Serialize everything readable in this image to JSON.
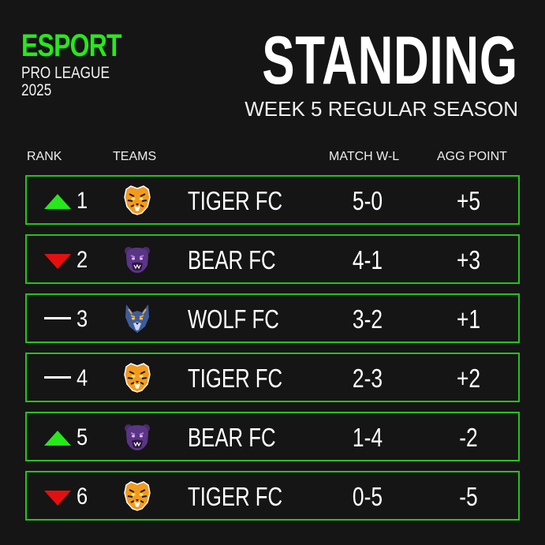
{
  "brand": {
    "name": "ESPORT",
    "line1": "PRO LEAGUE",
    "line2": "2025"
  },
  "header": {
    "title": "STANDING",
    "subtitle": "WEEK 5 REGULAR SEASON"
  },
  "columns": {
    "rank": "RANK",
    "teams": "TEAMS",
    "match": "MATCH W-L",
    "agg": "AGG POINT"
  },
  "colors": {
    "accent": "#27e81b",
    "down": "#e60f0f",
    "background": "#151515",
    "row_border": "#25c31a"
  },
  "rows": [
    {
      "trend": "up",
      "rank": "1",
      "logo": "tiger-logo-icon",
      "team": "TIGER FC",
      "wl": "5-0",
      "agg": "+5"
    },
    {
      "trend": "down",
      "rank": "2",
      "logo": "bear-logo-icon",
      "team": "BEAR FC",
      "wl": "4-1",
      "agg": "+3"
    },
    {
      "trend": "same",
      "rank": "3",
      "logo": "wolf-logo-icon",
      "team": "WOLF FC",
      "wl": "3-2",
      "agg": "+1"
    },
    {
      "trend": "same",
      "rank": "4",
      "logo": "tiger-logo-icon",
      "team": "TIGER FC",
      "wl": "2-3",
      "agg": "+2"
    },
    {
      "trend": "up",
      "rank": "5",
      "logo": "bear-logo-icon",
      "team": "BEAR FC",
      "wl": "1-4",
      "agg": "-2"
    },
    {
      "trend": "down",
      "rank": "6",
      "logo": "tiger-logo-icon",
      "team": "TIGER FC",
      "wl": "0-5",
      "agg": "-5"
    }
  ]
}
